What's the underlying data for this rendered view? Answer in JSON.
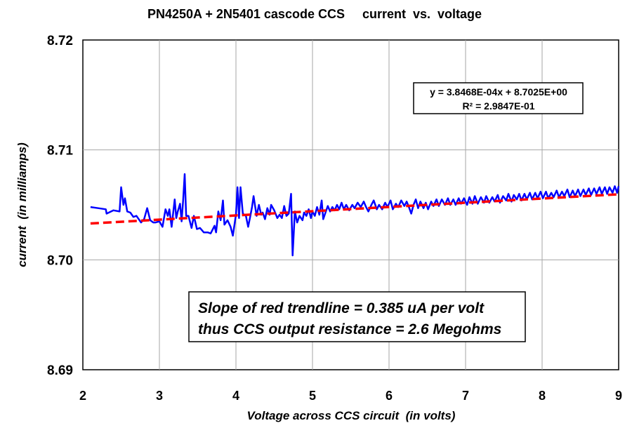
{
  "chart_data": {
    "type": "line",
    "title": "PN4250A + 2N5401 cascode CCS     current  vs.  voltage",
    "xlabel": "Voltage across CCS circuit  (in volts)",
    "ylabel": "current  (in milliamps)",
    "xlim": [
      2,
      9
    ],
    "ylim": [
      8.69,
      8.72
    ],
    "x_ticks": [
      "2",
      "3",
      "4",
      "5",
      "6",
      "7",
      "8",
      "9"
    ],
    "y_ticks": [
      "8.69",
      "8.70",
      "8.71",
      "8.72"
    ],
    "grid": true,
    "series": [
      {
        "color": "#0000ff",
        "points": [
          [
            2.1,
            8.7048
          ],
          [
            2.2,
            8.7047
          ],
          [
            2.3,
            8.7046
          ],
          [
            2.31,
            8.7042
          ],
          [
            2.4,
            8.7045
          ],
          [
            2.48,
            8.7044
          ],
          [
            2.5,
            8.7066
          ],
          [
            2.53,
            8.705
          ],
          [
            2.55,
            8.7056
          ],
          [
            2.58,
            8.7044
          ],
          [
            2.62,
            8.7043
          ],
          [
            2.66,
            8.7039
          ],
          [
            2.7,
            8.704
          ],
          [
            2.76,
            8.7034
          ],
          [
            2.8,
            8.7037
          ],
          [
            2.84,
            8.7047
          ],
          [
            2.88,
            8.7036
          ],
          [
            2.92,
            8.7034
          ],
          [
            2.95,
            8.7034
          ],
          [
            3.0,
            8.7035
          ],
          [
            3.04,
            8.703
          ],
          [
            3.08,
            8.7046
          ],
          [
            3.11,
            8.704
          ],
          [
            3.13,
            8.7046
          ],
          [
            3.16,
            8.703
          ],
          [
            3.2,
            8.7055
          ],
          [
            3.22,
            8.7038
          ],
          [
            3.24,
            8.7044
          ],
          [
            3.27,
            8.7051
          ],
          [
            3.29,
            8.7035
          ],
          [
            3.31,
            8.7054
          ],
          [
            3.33,
            8.7078
          ],
          [
            3.35,
            8.704
          ],
          [
            3.38,
            8.704
          ],
          [
            3.42,
            8.7029
          ],
          [
            3.45,
            8.704
          ],
          [
            3.49,
            8.7028
          ],
          [
            3.53,
            8.7029
          ],
          [
            3.58,
            8.7025
          ],
          [
            3.63,
            8.7025
          ],
          [
            3.67,
            8.7024
          ],
          [
            3.72,
            8.7031
          ],
          [
            3.74,
            8.7025
          ],
          [
            3.77,
            8.7044
          ],
          [
            3.8,
            8.7036
          ],
          [
            3.83,
            8.7054
          ],
          [
            3.85,
            8.7032
          ],
          [
            3.89,
            8.7036
          ],
          [
            3.93,
            8.703
          ],
          [
            3.96,
            8.7022
          ],
          [
            4.0,
            8.7041
          ],
          [
            4.02,
            8.7066
          ],
          [
            4.04,
            8.7038
          ],
          [
            4.06,
            8.7066
          ],
          [
            4.09,
            8.7042
          ],
          [
            4.13,
            8.704
          ],
          [
            4.16,
            8.703
          ],
          [
            4.18,
            8.7037
          ],
          [
            4.21,
            8.7048
          ],
          [
            4.23,
            8.7058
          ],
          [
            4.27,
            8.704
          ],
          [
            4.3,
            8.705
          ],
          [
            4.33,
            8.7041
          ],
          [
            4.35,
            8.7043
          ],
          [
            4.38,
            8.7037
          ],
          [
            4.41,
            8.7047
          ],
          [
            4.44,
            8.7041
          ],
          [
            4.46,
            8.705
          ],
          [
            4.5,
            8.7045
          ],
          [
            4.54,
            8.7038
          ],
          [
            4.57,
            8.7041
          ],
          [
            4.6,
            8.7038
          ],
          [
            4.63,
            8.7049
          ],
          [
            4.66,
            8.704
          ],
          [
            4.69,
            8.7042
          ],
          [
            4.72,
            8.706
          ],
          [
            4.74,
            8.7004
          ],
          [
            4.77,
            8.7044
          ],
          [
            4.8,
            8.7034
          ],
          [
            4.83,
            8.704
          ],
          [
            4.87,
            8.7036
          ],
          [
            4.89,
            8.7043
          ],
          [
            4.92,
            8.704
          ],
          [
            4.95,
            8.7046
          ],
          [
            4.98,
            8.7038
          ],
          [
            5.0,
            8.7044
          ],
          [
            5.03,
            8.704
          ],
          [
            5.06,
            8.7048
          ],
          [
            5.09,
            8.7041
          ],
          [
            5.12,
            8.7054
          ],
          [
            5.14,
            8.7037
          ],
          [
            5.17,
            8.7043
          ],
          [
            5.2,
            8.7049
          ],
          [
            5.23,
            8.7044
          ],
          [
            5.26,
            8.7048
          ],
          [
            5.29,
            8.7045
          ],
          [
            5.32,
            8.705
          ],
          [
            5.35,
            8.7046
          ],
          [
            5.38,
            8.7052
          ],
          [
            5.41,
            8.7046
          ],
          [
            5.44,
            8.705
          ],
          [
            5.48,
            8.7045
          ],
          [
            5.52,
            8.705
          ],
          [
            5.55,
            8.7047
          ],
          [
            5.59,
            8.7052
          ],
          [
            5.63,
            8.7048
          ],
          [
            5.67,
            8.7053
          ],
          [
            5.7,
            8.7048
          ],
          [
            5.73,
            8.7044
          ],
          [
            5.77,
            8.705
          ],
          [
            5.8,
            8.7054
          ],
          [
            5.84,
            8.7046
          ],
          [
            5.87,
            8.705
          ],
          [
            5.91,
            8.7046
          ],
          [
            5.95,
            8.7052
          ],
          [
            5.98,
            8.7048
          ],
          [
            6.02,
            8.7054
          ],
          [
            6.05,
            8.7046
          ],
          [
            6.09,
            8.7051
          ],
          [
            6.12,
            8.7048
          ],
          [
            6.16,
            8.7054
          ],
          [
            6.2,
            8.7049
          ],
          [
            6.23,
            8.7053
          ],
          [
            6.26,
            8.7048
          ],
          [
            6.29,
            8.7042
          ],
          [
            6.32,
            8.705
          ],
          [
            6.35,
            8.7055
          ],
          [
            6.38,
            8.7047
          ],
          [
            6.41,
            8.7053
          ],
          [
            6.45,
            8.7047
          ],
          [
            6.48,
            8.7052
          ],
          [
            6.51,
            8.7046
          ],
          [
            6.55,
            8.7053
          ],
          [
            6.58,
            8.7049
          ],
          [
            6.62,
            8.7055
          ],
          [
            6.65,
            8.7049
          ],
          [
            6.69,
            8.7055
          ],
          [
            6.73,
            8.705
          ],
          [
            6.77,
            8.7056
          ],
          [
            6.8,
            8.705
          ],
          [
            6.84,
            8.7055
          ],
          [
            6.87,
            8.705
          ],
          [
            6.91,
            8.7056
          ],
          [
            6.94,
            8.7051
          ],
          [
            6.98,
            8.7056
          ],
          [
            7.02,
            8.705
          ],
          [
            7.05,
            8.7057
          ],
          [
            7.09,
            8.7051
          ],
          [
            7.12,
            8.7058
          ],
          [
            7.16,
            8.7051
          ],
          [
            7.2,
            8.7057
          ],
          [
            7.24,
            8.7052
          ],
          [
            7.27,
            8.7058
          ],
          [
            7.31,
            8.7052
          ],
          [
            7.35,
            8.7057
          ],
          [
            7.38,
            8.7053
          ],
          [
            7.42,
            8.7059
          ],
          [
            7.45,
            8.7052
          ],
          [
            7.49,
            8.7058
          ],
          [
            7.53,
            8.7054
          ],
          [
            7.56,
            8.706
          ],
          [
            7.6,
            8.7053
          ],
          [
            7.63,
            8.7059
          ],
          [
            7.67,
            8.7055
          ],
          [
            7.7,
            8.706
          ],
          [
            7.73,
            8.7054
          ],
          [
            7.77,
            8.706
          ],
          [
            7.8,
            8.7055
          ],
          [
            7.84,
            8.7061
          ],
          [
            7.87,
            8.7055
          ],
          [
            7.91,
            8.7061
          ],
          [
            7.94,
            8.7056
          ],
          [
            7.98,
            8.7062
          ],
          [
            8.01,
            8.7056
          ],
          [
            8.05,
            8.7062
          ],
          [
            8.08,
            8.7056
          ],
          [
            8.12,
            8.7061
          ],
          [
            8.15,
            8.7057
          ],
          [
            8.19,
            8.7063
          ],
          [
            8.22,
            8.7057
          ],
          [
            8.26,
            8.7062
          ],
          [
            8.29,
            8.7058
          ],
          [
            8.33,
            8.7064
          ],
          [
            8.36,
            8.7057
          ],
          [
            8.4,
            8.7063
          ],
          [
            8.43,
            8.7058
          ],
          [
            8.47,
            8.7064
          ],
          [
            8.5,
            8.7058
          ],
          [
            8.54,
            8.7064
          ],
          [
            8.57,
            8.7059
          ],
          [
            8.61,
            8.7065
          ],
          [
            8.64,
            8.7059
          ],
          [
            8.68,
            8.7065
          ],
          [
            8.71,
            8.706
          ],
          [
            8.75,
            8.7066
          ],
          [
            8.78,
            8.706
          ],
          [
            8.82,
            8.7066
          ],
          [
            8.85,
            8.706
          ],
          [
            8.88,
            8.7066
          ],
          [
            8.92,
            8.7061
          ],
          [
            8.95,
            8.7067
          ],
          [
            8.98,
            8.7061
          ],
          [
            9.0,
            8.7067
          ]
        ]
      },
      {
        "color": "#ff0000",
        "trendline": "linear",
        "slope": 0.00038468,
        "intercept": 8.7025
      }
    ],
    "annotations": {
      "equation_line1": "y = 3.8468E-04x + 8.7025E+00",
      "equation_line2": "R² = 2.9847E-01",
      "note_line1": "Slope of red trendline = 0.385 uA per volt",
      "note_line2": "thus CCS output resistance = 2.6 Megohms"
    }
  }
}
